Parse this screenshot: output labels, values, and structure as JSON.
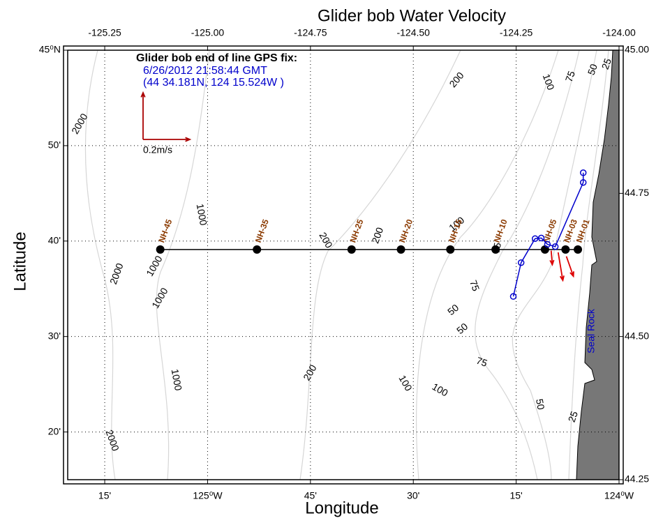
{
  "chart_data": {
    "type": "map",
    "title": "Glider bob Water Velocity",
    "xlabel": "Longitude",
    "ylabel": "Latitude",
    "xlim": [
      -125.34,
      -124.0
    ],
    "ylim": [
      44.25,
      45.0
    ],
    "xticks": [
      {
        "value": -125.25,
        "label": "15'"
      },
      {
        "value": -125.0,
        "label": "125⁰W"
      },
      {
        "value": -124.75,
        "label": "45'"
      },
      {
        "value": -124.5,
        "label": "30'"
      },
      {
        "value": -124.25,
        "label": "15'"
      },
      {
        "value": -124.0,
        "label": "124⁰W"
      }
    ],
    "x2ticks": [
      -125.25,
      {
        "value": -125.0,
        "label": "-125.00"
      },
      -124.75,
      {
        "value": -124.5,
        "label": "-124.50"
      },
      -124.25,
      {
        "value": -124.0,
        "label": "-124.00"
      }
    ],
    "yticks": [
      {
        "value": 44.3333,
        "label": "20'"
      },
      {
        "value": 44.5,
        "label": "30'"
      },
      {
        "value": 44.6667,
        "label": "40'"
      },
      {
        "value": 44.8333,
        "label": "50'"
      },
      {
        "value": 45.0,
        "label": "45⁰N"
      }
    ],
    "y2ticks": [
      44.25,
      {
        "value": 44.5,
        "label": "44.50"
      },
      44.75,
      {
        "value": 45.0,
        "label": "45.00"
      }
    ],
    "grid": true,
    "stations": {
      "names": [
        "NH-45",
        "NH-35",
        "NH-25",
        "NH-20",
        "NH-15",
        "NH-10",
        "NH-05",
        "NH-03",
        "NH-01"
      ],
      "x": [
        -125.115,
        -124.88,
        -124.65,
        -124.53,
        -124.41,
        -124.3,
        -124.18,
        -124.13,
        -124.1
      ],
      "y": [
        44.652,
        44.652,
        44.652,
        44.652,
        44.652,
        44.652,
        44.652,
        44.652,
        44.652
      ],
      "color": "#000000",
      "label_color": "#8b3a00"
    },
    "track": {
      "x": [
        -124.257,
        -124.238,
        -124.204,
        -124.189,
        -124.174,
        -124.155,
        -124.087,
        -124.087
      ],
      "y": [
        44.57,
        44.629,
        44.671,
        44.672,
        44.661,
        44.657,
        44.769,
        44.786
      ],
      "color": "#0000cc",
      "marker_color": "#cc0000"
    },
    "vectors": {
      "x": [
        -124.148,
        -124.128,
        -124.165
      ],
      "y": [
        44.647,
        44.64,
        44.65
      ],
      "u": [
        0.02,
        0.03,
        0.005
      ],
      "v": [
        -0.12,
        -0.085,
        -0.06
      ],
      "color": "#dd0000"
    },
    "scale": {
      "value": 0.2,
      "label": "0.2m/s",
      "color": "#aa0000"
    },
    "annotations": {
      "fix_title": "Glider bob end of line GPS fix:",
      "fix_time": "6/26/2012 21:58:44 GMT",
      "fix_pos": "(44 34.181N, 124 15.524W )",
      "place": "Seal Rock"
    },
    "contour_labels": [
      "2000",
      "1000",
      "200",
      "200",
      "100",
      "1000",
      "2000",
      "1000",
      "75",
      "75",
      "50",
      "50",
      "75",
      "1000",
      "200",
      "100",
      "100",
      "50",
      "25",
      "2000",
      "200",
      "100",
      "75",
      "50",
      "25"
    ]
  }
}
